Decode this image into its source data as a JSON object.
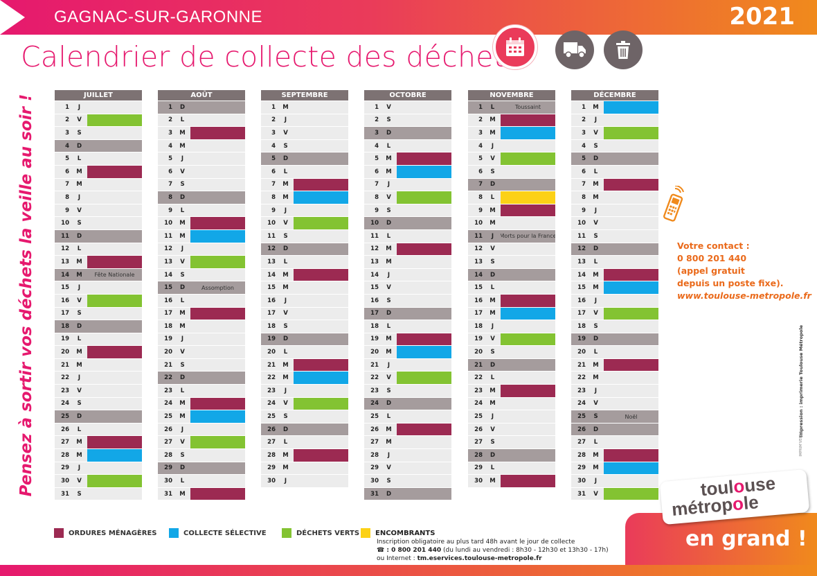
{
  "header": {
    "town": "GAGNAC-SUR-GARONNE",
    "year": "2021",
    "title": "Calendrier de collecte des déchets"
  },
  "icons": [
    "calendar-icon",
    "truck-icon",
    "trash-icon"
  ],
  "side_text": "Pensez à sortir vos déchets la veille au soir !",
  "colors": {
    "om": "#9c2a52",
    "cs": "#12a7e7",
    "dv": "#83c332",
    "en": "#fcd116",
    "brand": "#e6196e",
    "orange": "#f08a1c"
  },
  "months": [
    {
      "name": "JUILLET",
      "days": [
        {
          "d": "1",
          "l": "J"
        },
        {
          "d": "2",
          "l": "V",
          "c": "dv"
        },
        {
          "d": "3",
          "l": "S"
        },
        {
          "d": "4",
          "l": "D",
          "w": 1
        },
        {
          "d": "5",
          "l": "L"
        },
        {
          "d": "6",
          "l": "M",
          "c": "om"
        },
        {
          "d": "7",
          "l": "M"
        },
        {
          "d": "8",
          "l": "J"
        },
        {
          "d": "9",
          "l": "V"
        },
        {
          "d": "10",
          "l": "S"
        },
        {
          "d": "11",
          "l": "D",
          "w": 1
        },
        {
          "d": "12",
          "l": "L"
        },
        {
          "d": "13",
          "l": "M",
          "c": "om"
        },
        {
          "d": "14",
          "l": "M",
          "w": 1,
          "t": "Fête Nationale"
        },
        {
          "d": "15",
          "l": "J"
        },
        {
          "d": "16",
          "l": "V",
          "c": "dv"
        },
        {
          "d": "17",
          "l": "S"
        },
        {
          "d": "18",
          "l": "D",
          "w": 1
        },
        {
          "d": "19",
          "l": "L"
        },
        {
          "d": "20",
          "l": "M",
          "c": "om"
        },
        {
          "d": "21",
          "l": "M"
        },
        {
          "d": "22",
          "l": "J"
        },
        {
          "d": "23",
          "l": "V"
        },
        {
          "d": "24",
          "l": "S"
        },
        {
          "d": "25",
          "l": "D",
          "w": 1
        },
        {
          "d": "26",
          "l": "L"
        },
        {
          "d": "27",
          "l": "M",
          "c": "om"
        },
        {
          "d": "28",
          "l": "M",
          "c": "cs"
        },
        {
          "d": "29",
          "l": "J"
        },
        {
          "d": "30",
          "l": "V",
          "c": "dv"
        },
        {
          "d": "31",
          "l": "S"
        }
      ]
    },
    {
      "name": "AOÛT",
      "days": [
        {
          "d": "1",
          "l": "D",
          "w": 1
        },
        {
          "d": "2",
          "l": "L"
        },
        {
          "d": "3",
          "l": "M",
          "c": "om"
        },
        {
          "d": "4",
          "l": "M"
        },
        {
          "d": "5",
          "l": "J"
        },
        {
          "d": "6",
          "l": "V"
        },
        {
          "d": "7",
          "l": "S"
        },
        {
          "d": "8",
          "l": "D",
          "w": 1
        },
        {
          "d": "9",
          "l": "L"
        },
        {
          "d": "10",
          "l": "M",
          "c": "om"
        },
        {
          "d": "11",
          "l": "M",
          "c": "cs"
        },
        {
          "d": "12",
          "l": "J"
        },
        {
          "d": "13",
          "l": "V",
          "c": "dv"
        },
        {
          "d": "14",
          "l": "S"
        },
        {
          "d": "15",
          "l": "D",
          "w": 1,
          "t": "Assomption"
        },
        {
          "d": "16",
          "l": "L"
        },
        {
          "d": "17",
          "l": "M",
          "c": "om"
        },
        {
          "d": "18",
          "l": "M"
        },
        {
          "d": "19",
          "l": "J"
        },
        {
          "d": "20",
          "l": "V"
        },
        {
          "d": "21",
          "l": "S"
        },
        {
          "d": "22",
          "l": "D",
          "w": 1
        },
        {
          "d": "23",
          "l": "L"
        },
        {
          "d": "24",
          "l": "M",
          "c": "om"
        },
        {
          "d": "25",
          "l": "M",
          "c": "cs"
        },
        {
          "d": "26",
          "l": "J"
        },
        {
          "d": "27",
          "l": "V",
          "c": "dv"
        },
        {
          "d": "28",
          "l": "S"
        },
        {
          "d": "29",
          "l": "D",
          "w": 1
        },
        {
          "d": "30",
          "l": "L"
        },
        {
          "d": "31",
          "l": "M",
          "c": "om"
        }
      ]
    },
    {
      "name": "SEPTEMBRE",
      "days": [
        {
          "d": "1",
          "l": "M"
        },
        {
          "d": "2",
          "l": "J"
        },
        {
          "d": "3",
          "l": "V"
        },
        {
          "d": "4",
          "l": "S"
        },
        {
          "d": "5",
          "l": "D",
          "w": 1
        },
        {
          "d": "6",
          "l": "L"
        },
        {
          "d": "7",
          "l": "M",
          "c": "om"
        },
        {
          "d": "8",
          "l": "M",
          "c": "cs"
        },
        {
          "d": "9",
          "l": "J"
        },
        {
          "d": "10",
          "l": "V",
          "c": "dv"
        },
        {
          "d": "11",
          "l": "S"
        },
        {
          "d": "12",
          "l": "D",
          "w": 1
        },
        {
          "d": "13",
          "l": "L"
        },
        {
          "d": "14",
          "l": "M",
          "c": "om"
        },
        {
          "d": "15",
          "l": "M"
        },
        {
          "d": "16",
          "l": "J"
        },
        {
          "d": "17",
          "l": "V"
        },
        {
          "d": "18",
          "l": "S"
        },
        {
          "d": "19",
          "l": "D",
          "w": 1
        },
        {
          "d": "20",
          "l": "L"
        },
        {
          "d": "21",
          "l": "M",
          "c": "om"
        },
        {
          "d": "22",
          "l": "M",
          "c": "cs"
        },
        {
          "d": "23",
          "l": "J"
        },
        {
          "d": "24",
          "l": "V",
          "c": "dv"
        },
        {
          "d": "25",
          "l": "S"
        },
        {
          "d": "26",
          "l": "D",
          "w": 1
        },
        {
          "d": "27",
          "l": "L"
        },
        {
          "d": "28",
          "l": "M",
          "c": "om"
        },
        {
          "d": "29",
          "l": "M"
        },
        {
          "d": "30",
          "l": "J"
        }
      ]
    },
    {
      "name": "OCTOBRE",
      "days": [
        {
          "d": "1",
          "l": "V"
        },
        {
          "d": "2",
          "l": "S"
        },
        {
          "d": "3",
          "l": "D",
          "w": 1
        },
        {
          "d": "4",
          "l": "L"
        },
        {
          "d": "5",
          "l": "M",
          "c": "om"
        },
        {
          "d": "6",
          "l": "M",
          "c": "cs"
        },
        {
          "d": "7",
          "l": "J"
        },
        {
          "d": "8",
          "l": "V",
          "c": "dv"
        },
        {
          "d": "9",
          "l": "S"
        },
        {
          "d": "10",
          "l": "D",
          "w": 1
        },
        {
          "d": "11",
          "l": "L"
        },
        {
          "d": "12",
          "l": "M",
          "c": "om"
        },
        {
          "d": "13",
          "l": "M"
        },
        {
          "d": "14",
          "l": "J"
        },
        {
          "d": "15",
          "l": "V"
        },
        {
          "d": "16",
          "l": "S"
        },
        {
          "d": "17",
          "l": "D",
          "w": 1
        },
        {
          "d": "18",
          "l": "L"
        },
        {
          "d": "19",
          "l": "M",
          "c": "om"
        },
        {
          "d": "20",
          "l": "M",
          "c": "cs"
        },
        {
          "d": "21",
          "l": "J"
        },
        {
          "d": "22",
          "l": "V",
          "c": "dv"
        },
        {
          "d": "23",
          "l": "S"
        },
        {
          "d": "24",
          "l": "D",
          "w": 1
        },
        {
          "d": "25",
          "l": "L"
        },
        {
          "d": "26",
          "l": "M",
          "c": "om"
        },
        {
          "d": "27",
          "l": "M"
        },
        {
          "d": "28",
          "l": "J"
        },
        {
          "d": "29",
          "l": "V"
        },
        {
          "d": "30",
          "l": "S"
        },
        {
          "d": "31",
          "l": "D",
          "w": 1
        }
      ]
    },
    {
      "name": "NOVEMBRE",
      "days": [
        {
          "d": "1",
          "l": "L",
          "w": 1,
          "t": "Toussaint"
        },
        {
          "d": "2",
          "l": "M",
          "c": "om"
        },
        {
          "d": "3",
          "l": "M",
          "c": "cs"
        },
        {
          "d": "4",
          "l": "J"
        },
        {
          "d": "5",
          "l": "V",
          "c": "dv"
        },
        {
          "d": "6",
          "l": "S"
        },
        {
          "d": "7",
          "l": "D",
          "w": 1
        },
        {
          "d": "8",
          "l": "L",
          "c": "en"
        },
        {
          "d": "9",
          "l": "M",
          "c": "om"
        },
        {
          "d": "10",
          "l": "M"
        },
        {
          "d": "11",
          "l": "J",
          "w": 1,
          "t": "Morts pour la France"
        },
        {
          "d": "12",
          "l": "V"
        },
        {
          "d": "13",
          "l": "S"
        },
        {
          "d": "14",
          "l": "D",
          "w": 1
        },
        {
          "d": "15",
          "l": "L"
        },
        {
          "d": "16",
          "l": "M",
          "c": "om"
        },
        {
          "d": "17",
          "l": "M",
          "c": "cs"
        },
        {
          "d": "18",
          "l": "J"
        },
        {
          "d": "19",
          "l": "V",
          "c": "dv"
        },
        {
          "d": "20",
          "l": "S"
        },
        {
          "d": "21",
          "l": "D",
          "w": 1
        },
        {
          "d": "22",
          "l": "L"
        },
        {
          "d": "23",
          "l": "M",
          "c": "om"
        },
        {
          "d": "24",
          "l": "M"
        },
        {
          "d": "25",
          "l": "J"
        },
        {
          "d": "26",
          "l": "V"
        },
        {
          "d": "27",
          "l": "S"
        },
        {
          "d": "28",
          "l": "D",
          "w": 1
        },
        {
          "d": "29",
          "l": "L"
        },
        {
          "d": "30",
          "l": "M",
          "c": "om"
        }
      ]
    },
    {
      "name": "DÉCEMBRE",
      "days": [
        {
          "d": "1",
          "l": "M",
          "c": "cs"
        },
        {
          "d": "2",
          "l": "J"
        },
        {
          "d": "3",
          "l": "V",
          "c": "dv"
        },
        {
          "d": "4",
          "l": "S"
        },
        {
          "d": "5",
          "l": "D",
          "w": 1
        },
        {
          "d": "6",
          "l": "L"
        },
        {
          "d": "7",
          "l": "M",
          "c": "om"
        },
        {
          "d": "8",
          "l": "M"
        },
        {
          "d": "9",
          "l": "J"
        },
        {
          "d": "10",
          "l": "V"
        },
        {
          "d": "11",
          "l": "S"
        },
        {
          "d": "12",
          "l": "D",
          "w": 1
        },
        {
          "d": "13",
          "l": "L"
        },
        {
          "d": "14",
          "l": "M",
          "c": "om"
        },
        {
          "d": "15",
          "l": "M",
          "c": "cs"
        },
        {
          "d": "16",
          "l": "J"
        },
        {
          "d": "17",
          "l": "V",
          "c": "dv"
        },
        {
          "d": "18",
          "l": "S"
        },
        {
          "d": "19",
          "l": "D",
          "w": 1
        },
        {
          "d": "20",
          "l": "L"
        },
        {
          "d": "21",
          "l": "M",
          "c": "om"
        },
        {
          "d": "22",
          "l": "M"
        },
        {
          "d": "23",
          "l": "J"
        },
        {
          "d": "24",
          "l": "V"
        },
        {
          "d": "25",
          "l": "S",
          "w": 1,
          "t": "Noël"
        },
        {
          "d": "26",
          "l": "D",
          "w": 1
        },
        {
          "d": "27",
          "l": "L"
        },
        {
          "d": "28",
          "l": "M",
          "c": "om"
        },
        {
          "d": "29",
          "l": "M",
          "c": "cs"
        },
        {
          "d": "30",
          "l": "J"
        },
        {
          "d": "31",
          "l": "V",
          "c": "dv"
        }
      ]
    }
  ],
  "contact": {
    "l1": "Votre contact :",
    "l2": "0 800 201 440",
    "l3": "(appel gratuit",
    "l4": "depuis un poste fixe).",
    "url": "www.toulouse-metropole.fr"
  },
  "imprint": "Impression : imprimerie Toulouse Métropole",
  "imprint_small": "IMPRIM'VERT®",
  "logo": {
    "a": "toul",
    "o1": "o",
    "b": "use",
    "c": "métrop",
    "o2": "o",
    "d": "le"
  },
  "slogan": "en grand !",
  "legend": {
    "om": "ORDURES MÉNAGÈRES",
    "cs": "COLLECTE SÉLECTIVE",
    "dv": "DÉCHETS VERTS",
    "en": "ENCOMBRANTS",
    "en_1": "Inscription obligatoire au plus tard 48h avant le jour de collecte",
    "en_2a": "☎ : 0 800 201 440",
    "en_2b": " (du lundi au vendredi : 8h30 - 12h30 et 13h30 - 17h)",
    "en_3a": "ou Internet : ",
    "en_3b": "tm.eservices.toulouse-metropole.fr"
  }
}
